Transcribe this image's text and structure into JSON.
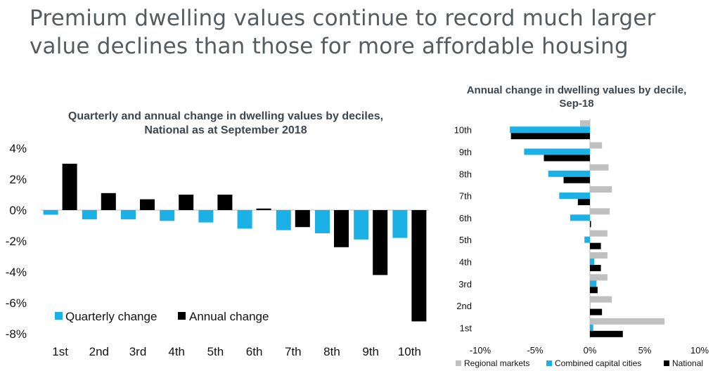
{
  "slide": {
    "title_line1": "Premium dwelling values continue to record much larger",
    "title_line2": "value declines than those for more affordable housing"
  },
  "colors": {
    "quarterly": "#1bb1e7",
    "annual": "#000000",
    "regional": "#c0c0c0",
    "combined": "#1bb1e7",
    "national": "#000000",
    "title_text": "#555b5f"
  },
  "chart_data": [
    {
      "type": "bar",
      "title_line1": "Quarterly and annual change in dwelling values by deciles,",
      "title_line2": "National as at September 2018",
      "categories": [
        "1st",
        "2nd",
        "3rd",
        "4th",
        "5th",
        "6th",
        "7th",
        "8th",
        "9th",
        "10th"
      ],
      "series": [
        {
          "name": "Quarterly change",
          "values": [
            -0.3,
            -0.6,
            -0.6,
            -0.7,
            -0.8,
            -1.2,
            -1.3,
            -1.5,
            -1.9,
            -1.8
          ]
        },
        {
          "name": "Annual change",
          "values": [
            3.0,
            1.1,
            0.7,
            1.0,
            1.0,
            0.1,
            -1.1,
            -2.4,
            -4.2,
            -7.2
          ]
        }
      ],
      "yticks": [
        "4%",
        "2%",
        "0%",
        "-2%",
        "-4%",
        "-6%",
        "-8%"
      ],
      "ylim": [
        -8,
        4
      ],
      "legend_position": "bottom-left"
    },
    {
      "type": "bar",
      "orientation": "horizontal",
      "title_line1": "Annual change in dwelling values by decile,",
      "title_line2": "Sep-18",
      "categories": [
        "10th",
        "9th",
        "8th",
        "7th",
        "6th",
        "5th",
        "4th",
        "3rd",
        "2nd",
        "1st"
      ],
      "series": [
        {
          "name": "Regional markets",
          "values": [
            -0.9,
            1.1,
            1.7,
            2.0,
            1.8,
            1.6,
            1.6,
            1.6,
            2.0,
            6.8
          ]
        },
        {
          "name": "Combined capital cities",
          "values": [
            -7.3,
            -6.0,
            -3.8,
            -2.8,
            -1.8,
            -0.5,
            0.4,
            0.6,
            0.0,
            0.3
          ]
        },
        {
          "name": "National",
          "values": [
            -7.2,
            -4.2,
            -2.4,
            -1.1,
            0.1,
            1.0,
            1.0,
            0.7,
            1.1,
            3.0
          ]
        }
      ],
      "xticks": [
        "-10%",
        "-5%",
        "0%",
        "5%",
        "10%"
      ],
      "xlim": [
        -10,
        10
      ],
      "legend_position": "bottom"
    }
  ]
}
